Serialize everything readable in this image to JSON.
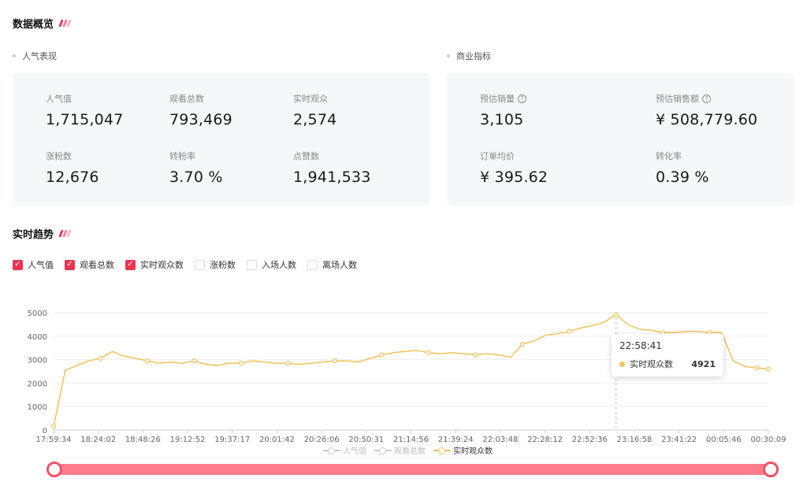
{
  "overview": {
    "title": "数据概览",
    "popularity": {
      "title": "人气表现",
      "metrics": [
        {
          "label": "人气值",
          "value": "1,715,047"
        },
        {
          "label": "观看总数",
          "value": "793,469"
        },
        {
          "label": "实时观众",
          "value": "2,574"
        },
        {
          "label": "涨粉数",
          "value": "12,676"
        },
        {
          "label": "转粉率",
          "value": "3.70 %"
        },
        {
          "label": "点赞数",
          "value": "1,941,533"
        }
      ]
    },
    "business": {
      "title": "商业指标",
      "metrics": [
        {
          "label": "预估销量",
          "value": "3,105",
          "help": true
        },
        {
          "label": "预估销售额",
          "value": "¥ 508,779.60",
          "help": true
        },
        {
          "label": "订单均价",
          "value": "¥ 395.62"
        },
        {
          "label": "转化率",
          "value": "0.39 %"
        }
      ]
    }
  },
  "trend": {
    "title": "实时趋势",
    "checkboxes": [
      {
        "label": "人气值",
        "checked": true
      },
      {
        "label": "观看总数",
        "checked": true
      },
      {
        "label": "实时观众数",
        "checked": true
      },
      {
        "label": "涨粉数",
        "checked": false
      },
      {
        "label": "入场人数",
        "checked": false
      },
      {
        "label": "离场人数",
        "checked": false
      }
    ]
  },
  "colors": {
    "accent": "#f0334f",
    "line": "#f5c15a",
    "slider": "#ff7d8c"
  },
  "tooltip": {
    "time": "22:58:41",
    "series": "实时观众数",
    "value": "4921"
  },
  "chart_data": {
    "type": "line",
    "x_ticks": [
      "17:59:34",
      "18:24:02",
      "18:48:26",
      "19:12:52",
      "19:37:17",
      "20:01:42",
      "20:26:06",
      "20:50:31",
      "21:14:56",
      "21:39:24",
      "22:03:48",
      "22:28:12",
      "22:52:36",
      "23:16:58",
      "23:41:22",
      "00:05:46",
      "00:30:09"
    ],
    "y_ticks": [
      0,
      1000,
      2000,
      3000,
      4000,
      5000
    ],
    "ylim": [
      0,
      5000
    ],
    "legend": [
      "人气值",
      "观看总数",
      "实时观众数"
    ],
    "legend_inactive": [
      "人气值",
      "观看总数"
    ],
    "series": [
      {
        "name": "实时观众数",
        "values": [
          150,
          2550,
          2750,
          2950,
          3050,
          3350,
          3150,
          3050,
          2950,
          2850,
          2900,
          2850,
          2950,
          2800,
          2750,
          2850,
          2850,
          2950,
          2900,
          2850,
          2850,
          2800,
          2850,
          2900,
          2950,
          2950,
          2900,
          3050,
          3200,
          3300,
          3350,
          3400,
          3300,
          3250,
          3300,
          3250,
          3200,
          3250,
          3200,
          3100,
          3650,
          3800,
          4050,
          4100,
          4200,
          4350,
          4450,
          4600,
          4921,
          4500,
          4300,
          4250,
          4150,
          4150,
          4200,
          4200,
          4150,
          4150,
          2950,
          2700,
          2650,
          2600
        ]
      }
    ]
  }
}
